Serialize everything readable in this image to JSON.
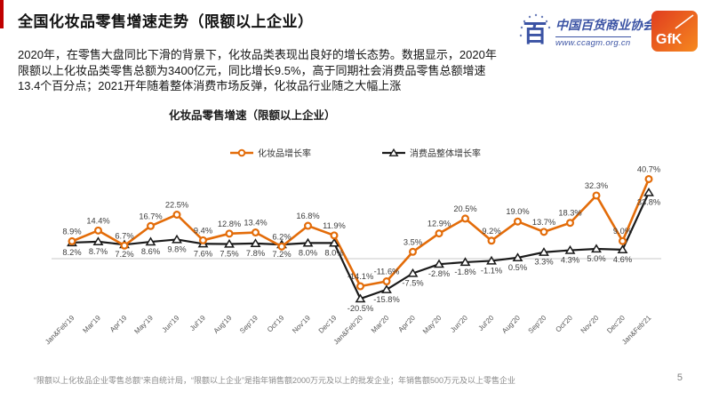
{
  "page": {
    "title": "全国化妆品零售增速走势（限额以上企业）",
    "paragraph": "2020年，在零售大盘同比下滑的背景下，化妆品类表现出良好的增长态势。数据显示，2020年限额以上化妆品类零售总额为3400亿元，同比增长9.5%，高于同期社会消费品零售总额增速13.4个百分点；2021开年随着整体消费市场反弹，化妆品行业随之大幅上涨",
    "footnote": "“限额以上化妆品企业零售总额”来自统计局，“限额以上企业”是指年销售额2000万元及以上的批发企业；年销售额500万元及以上零售企业",
    "page_number": "5"
  },
  "logos": {
    "association_glyph": "百",
    "association_name": "中国百货商业协会",
    "association_url": "www.ccagm.org.cn",
    "gfk_label": "GfK"
  },
  "colors": {
    "accent_bar": "#c00000",
    "logo_blue": "#3b53a4",
    "gfk_orange_dark": "#e03c1f",
    "gfk_orange_light": "#f6891f",
    "zero_line": "#c9c9c9",
    "data_label": "#3d3d3d",
    "footnote_gray": "#8a8a8a"
  },
  "chart_data": {
    "type": "line",
    "title": "化妆品零售增速（限额以上企业）",
    "unit": "%",
    "grid": false,
    "zero_line": true,
    "legend_position": "top",
    "ylim": [
      -25,
      45
    ],
    "categories": [
      "Jan&Feb'19",
      "Mar'19",
      "Apr'19",
      "May'19",
      "Jun'19",
      "Jul'19",
      "Aug'19",
      "Sep'19",
      "Oct'19",
      "Nov'19",
      "Dec'19",
      "Jan&Feb'20",
      "Mar'20",
      "Apr'20",
      "May'20",
      "Jun'20",
      "Jul'20",
      "Aug'20",
      "Sep'20",
      "Oct'20",
      "Nov'20",
      "Dec'20",
      "Jan&Feb'21"
    ],
    "series": [
      {
        "name": "化妆品增长率",
        "color": "#e36c09",
        "marker": "circle",
        "values": [
          8.9,
          14.4,
          6.7,
          16.7,
          22.5,
          9.4,
          12.8,
          13.4,
          6.2,
          16.8,
          11.9,
          -14.1,
          -11.6,
          3.5,
          12.9,
          20.5,
          9.2,
          19.0,
          13.7,
          18.3,
          32.3,
          9.0,
          40.7
        ]
      },
      {
        "name": "消费品整体增长率",
        "color": "#1a1a1a",
        "marker": "triangle",
        "values": [
          8.2,
          8.7,
          7.2,
          8.6,
          9.8,
          7.6,
          7.5,
          7.8,
          7.2,
          8.0,
          8.0,
          -20.5,
          -15.8,
          -7.5,
          -2.8,
          -1.8,
          -1.1,
          0.5,
          3.3,
          4.3,
          5.0,
          4.6,
          33.8
        ]
      }
    ]
  }
}
